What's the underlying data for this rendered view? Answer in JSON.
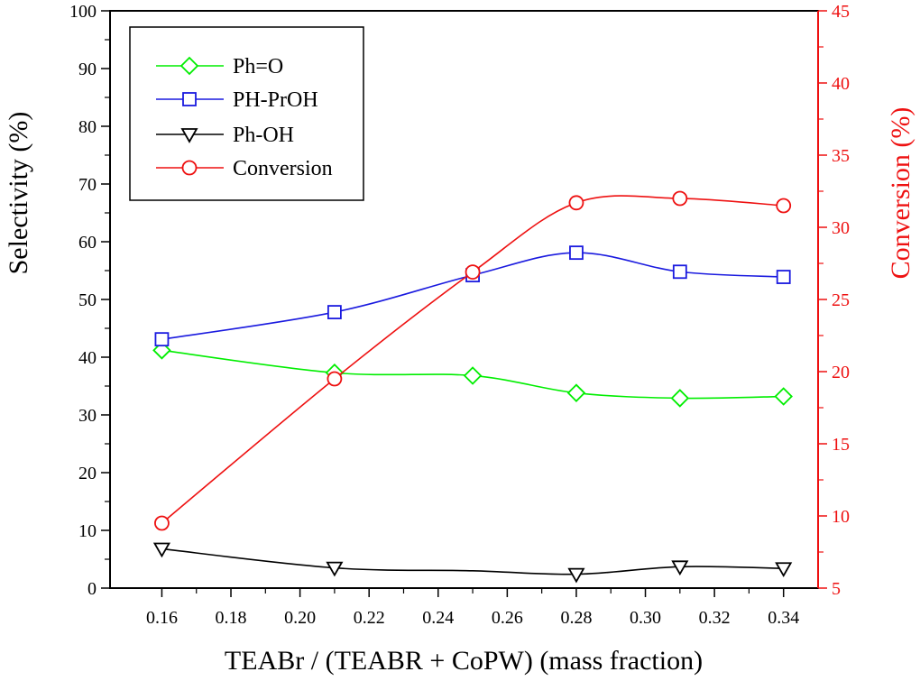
{
  "chart_data": {
    "type": "line",
    "x": [
      0.16,
      0.21,
      0.25,
      0.28,
      0.31,
      0.34
    ],
    "xlim": [
      0.145,
      0.35
    ],
    "x_ticks": [
      "0.16",
      "0.18",
      "0.20",
      "0.22",
      "0.24",
      "0.26",
      "0.28",
      "0.30",
      "0.32",
      "0.34"
    ],
    "xlabel": "TEABr / (TEABR + CoPW)  (mass fraction)",
    "ylabel": "Selectivity (%)",
    "ylim": [
      0,
      100
    ],
    "y_ticks": [
      "0",
      "10",
      "20",
      "30",
      "40",
      "50",
      "60",
      "70",
      "80",
      "90",
      "100"
    ],
    "y2label": "Conversion (%)",
    "y2lim": [
      5,
      45
    ],
    "y2_ticks": [
      "5",
      "10",
      "15",
      "20",
      "25",
      "30",
      "35",
      "40",
      "45"
    ],
    "grid": false,
    "legend_position": "top-left",
    "series": [
      {
        "name": "Ph=O",
        "axis": "left",
        "color": "#00ee00",
        "marker": "diamond",
        "values": [
          41.2,
          37.3,
          36.8,
          33.8,
          32.9,
          33.2
        ]
      },
      {
        "name": "PH-PrOH",
        "axis": "left",
        "color": "#1a1adf",
        "marker": "square",
        "values": [
          43.1,
          47.8,
          54.2,
          58.1,
          54.8,
          53.9
        ]
      },
      {
        "name": "Ph-OH",
        "axis": "left",
        "color": "#000000",
        "marker": "triangle-down",
        "values": [
          6.8,
          3.5,
          null,
          2.4,
          3.7,
          3.4
        ]
      },
      {
        "name": "Conversion",
        "axis": "right",
        "color": "#ee1111",
        "marker": "circle",
        "values": [
          9.5,
          19.5,
          26.9,
          31.7,
          32.0,
          31.5
        ]
      }
    ],
    "curve_extra": {
      "Ph-OH": {
        "x": 0.25,
        "y": 3.0
      }
    }
  }
}
